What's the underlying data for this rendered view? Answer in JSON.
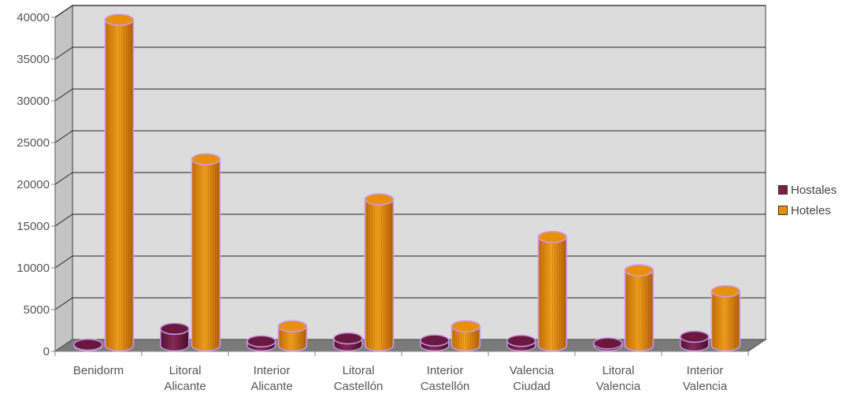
{
  "chart_data": {
    "type": "bar",
    "categories": [
      [
        "Benidorm"
      ],
      [
        "Litoral",
        "Alicante"
      ],
      [
        "Interior",
        "Alicante"
      ],
      [
        "Litoral",
        "Castellón"
      ],
      [
        "Interior",
        "Castellón"
      ],
      [
        "Valencia",
        "Ciudad"
      ],
      [
        "Litoral",
        "Valencia"
      ],
      [
        "Interior",
        "Valencia"
      ]
    ],
    "series": [
      {
        "name": "Hostales",
        "color": "#7a1f4a",
        "values": [
          100,
          2000,
          500,
          850,
          600,
          550,
          250,
          1050
        ]
      },
      {
        "name": "Hoteles",
        "color": "#e8900a",
        "values": [
          39000,
          22300,
          2300,
          17500,
          2300,
          13000,
          9000,
          6500
        ]
      }
    ],
    "ylim": [
      0,
      40000
    ],
    "yticks": [
      "0",
      "5000",
      "10000",
      "15000",
      "20000",
      "25000",
      "30000",
      "35000",
      "40000"
    ],
    "grid": true,
    "legend": "right"
  }
}
